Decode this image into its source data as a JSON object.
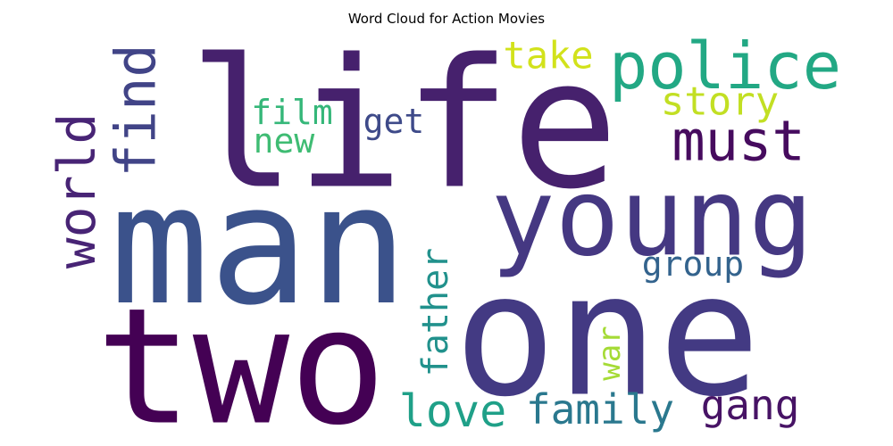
{
  "chart_data": {
    "type": "word_cloud",
    "title": "Word Cloud for Action Movies",
    "words": [
      {
        "text": "life",
        "color": "#46216d"
      },
      {
        "text": "man",
        "color": "#3b528b"
      },
      {
        "text": "two",
        "color": "#440154"
      },
      {
        "text": "one",
        "color": "#433a83"
      },
      {
        "text": "young",
        "color": "#453882"
      },
      {
        "text": "police",
        "color": "#22a884"
      },
      {
        "text": "must",
        "color": "#460b5e"
      },
      {
        "text": "find",
        "color": "#414487"
      },
      {
        "text": "world",
        "color": "#482475"
      },
      {
        "text": "story",
        "color": "#c2df23"
      },
      {
        "text": "take",
        "color": "#d2e21b"
      },
      {
        "text": "film",
        "color": "#35b779"
      },
      {
        "text": "new",
        "color": "#3fbc73"
      },
      {
        "text": "get",
        "color": "#3e4a89"
      },
      {
        "text": "father",
        "color": "#21918c"
      },
      {
        "text": "group",
        "color": "#33638d"
      },
      {
        "text": "war",
        "color": "#a5db36"
      },
      {
        "text": "love",
        "color": "#1fa088"
      },
      {
        "text": "family",
        "color": "#2a788e"
      },
      {
        "text": "gang",
        "color": "#471365"
      }
    ]
  }
}
